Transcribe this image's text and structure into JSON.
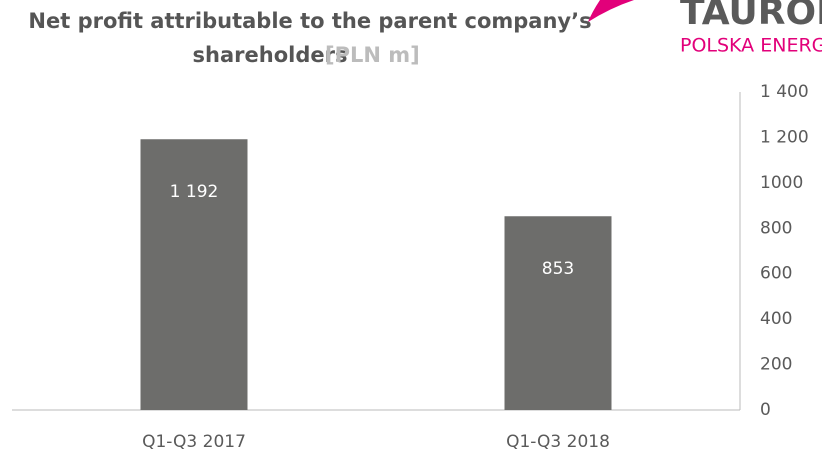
{
  "chart_data": {
    "type": "bar",
    "title": "Net profit attributable to the parent company’s shareholders",
    "title_unit": "[PLN m]",
    "logo": {
      "name": "TAURON",
      "tagline": "POLSKA ENERGIA"
    },
    "categories": [
      "Q1-Q3 2017",
      "Q1-Q3 2018"
    ],
    "values": [
      1192,
      853
    ],
    "value_labels": [
      "1 192",
      "853"
    ],
    "color": "#6d6d6b",
    "ylim": [
      0,
      1400
    ],
    "yticks": [
      0,
      200,
      400,
      600,
      800,
      1000,
      {
        "value": 1200,
        "label": "1 200"
      },
      {
        "value": 1400,
        "label": "1 400"
      }
    ],
    "axis_side": "right",
    "grid": false
  }
}
